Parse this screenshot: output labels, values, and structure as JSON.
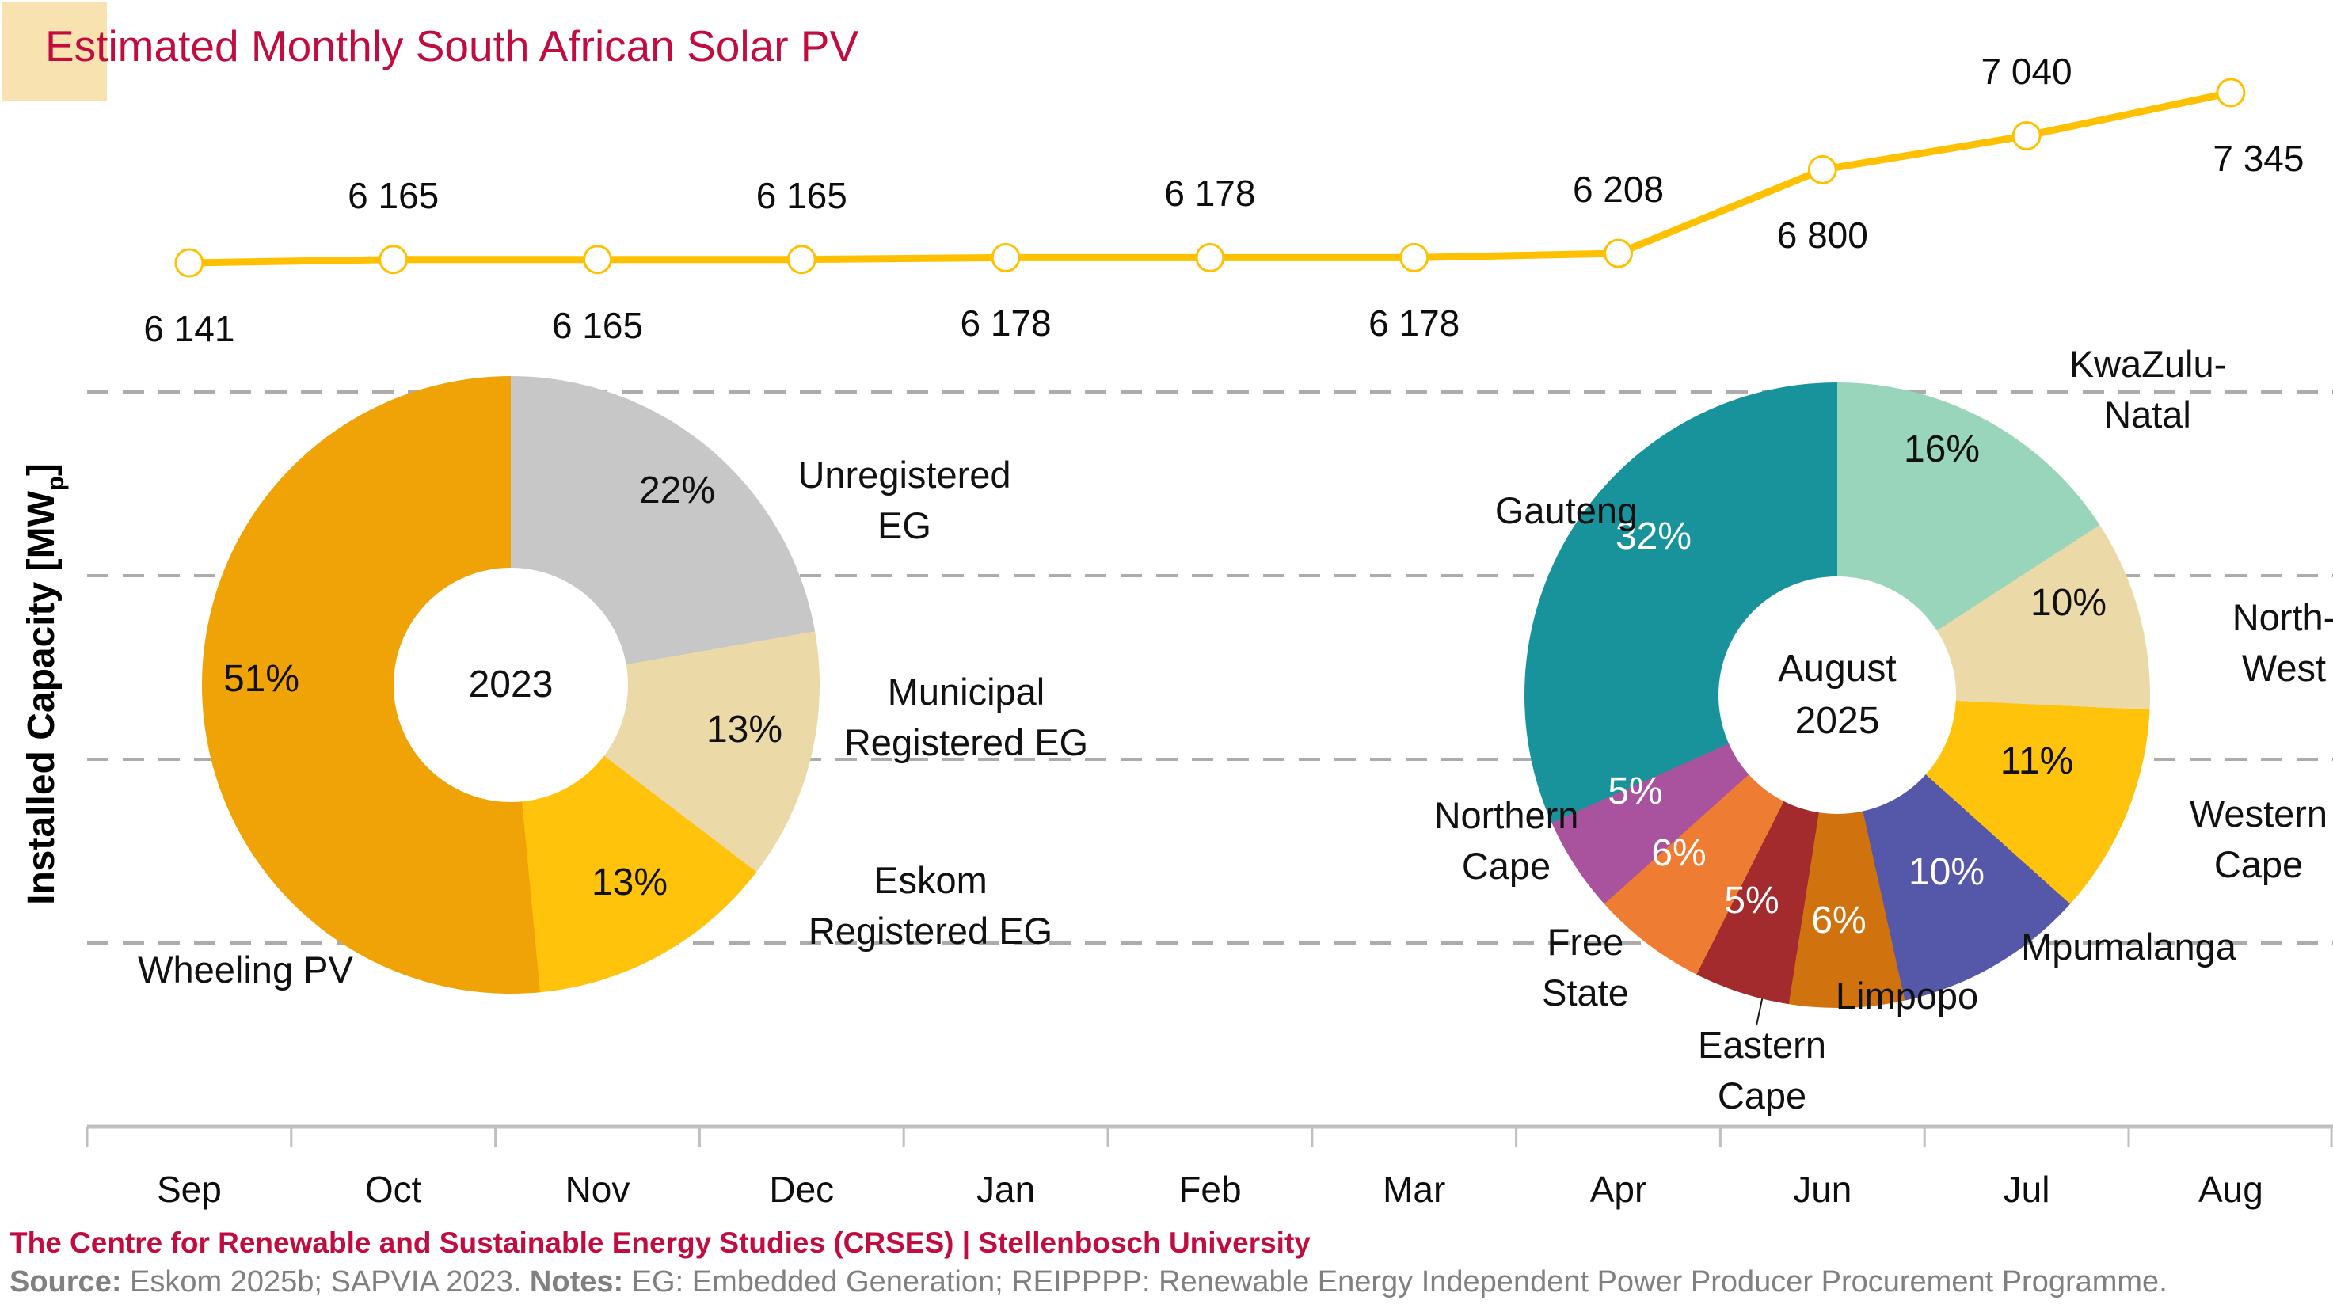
{
  "title": "Estimated Monthly South African Solar PV",
  "y_axis_label": {
    "prefix": "Installed Capacity [MW",
    "subscript": "p",
    "suffix": "]"
  },
  "x_axis": {
    "months": [
      "Sep",
      "Oct",
      "Nov",
      "Dec",
      "Jan",
      "Feb",
      "Mar",
      "Apr",
      "Jun",
      "Jul",
      "Aug"
    ]
  },
  "footer": {
    "credit": "The Centre for Renewable and Sustainable Energy Studies (CRSES) | Stellenbosch University",
    "source_label": "Source:",
    "source_text": " Eskom 2025b; SAPVIA 2023. ",
    "notes_label": "Notes:",
    "notes_text": " EG: Embedded Generation; REIPPPP: Renewable Energy Independent Power Producer Procurement Programme."
  },
  "colors": {
    "title_text": "#C00C3F",
    "title_block_bg": "#F8E3B0",
    "line_series": "#FFC000",
    "gridline": "#ACACAC",
    "axis": "#BFBFBF",
    "footer_gray": "#808080",
    "leader_line": "#1a1a1a"
  },
  "chart_data": [
    {
      "type": "line",
      "name": "monthly-installed-capacity",
      "title": "Estimated Monthly South African Solar PV",
      "xlabel": "",
      "ylabel": "Installed Capacity [MWp]",
      "x": [
        "Sep",
        "Oct",
        "Nov",
        "Dec",
        "Jan",
        "Feb",
        "Mar",
        "Apr",
        "Jun",
        "Jul",
        "Aug"
      ],
      "values": [
        6141,
        6165,
        6165,
        6165,
        6178,
        6178,
        6178,
        6208,
        6800,
        7040,
        7345
      ],
      "value_labels": [
        "6 141",
        "6 165",
        "6 165",
        "6 165",
        "6 178",
        "6 178",
        "6 178",
        "6 208",
        "6 800",
        "7 040",
        "7 345"
      ],
      "label_side": [
        "below",
        "above",
        "below",
        "above",
        "below",
        "above",
        "below",
        "above",
        "below",
        "above",
        "below"
      ],
      "series_color": "#FFC000",
      "marker": "circle-open",
      "grid": "horizontal-dashed",
      "legend": "none"
    },
    {
      "type": "pie",
      "name": "solar-pv-share-by-category",
      "center_label": "2023",
      "donut": true,
      "slices": [
        {
          "label": "Unregistered EG",
          "pct": 22,
          "pct_label": "22%",
          "color": "#C7C7C7",
          "pct_color": "#111111"
        },
        {
          "label": "Municipal Registered EG",
          "pct": 13,
          "pct_label": "13%",
          "color": "#EBD9A8",
          "pct_color": "#111111"
        },
        {
          "label": "Eskom Registered EG",
          "pct": 13,
          "pct_label": "13%",
          "color": "#FFC30B",
          "pct_color": "#111111"
        },
        {
          "label": "Wheeling PV",
          "pct": 51,
          "pct_label": "51%",
          "color": "#EFA306",
          "pct_color": "#111111"
        }
      ]
    },
    {
      "type": "pie",
      "name": "solar-pv-share-by-province",
      "center_label": "August 2025",
      "donut": true,
      "slices": [
        {
          "label": "KwaZulu-Natal",
          "pct": 16,
          "pct_label": "16%",
          "color": "#98D5BA",
          "pct_color": "#111111"
        },
        {
          "label": "North-West",
          "pct": 10,
          "pct_label": "10%",
          "color": "#EBD9A8",
          "pct_color": "#111111"
        },
        {
          "label": "Western Cape",
          "pct": 11,
          "pct_label": "11%",
          "color": "#FFC30B",
          "pct_color": "#111111"
        },
        {
          "label": "Mpumalanga",
          "pct": 10,
          "pct_label": "10%",
          "color": "#5558A9",
          "pct_color": "#FFFFFF"
        },
        {
          "label": "Limpopo",
          "pct": 6,
          "pct_label": "6%",
          "color": "#D0730F",
          "pct_color": "#FFFFFF"
        },
        {
          "label": "Eastern Cape",
          "pct": 5,
          "pct_label": "5%",
          "color": "#A32B2D",
          "pct_color": "#FFFFFF"
        },
        {
          "label": "Free State",
          "pct": 6,
          "pct_label": "6%",
          "color": "#EE7D33",
          "pct_color": "#FFFFFF"
        },
        {
          "label": "Northern Cape",
          "pct": 5,
          "pct_label": "5%",
          "color": "#A9539F",
          "pct_color": "#FFFFFF"
        },
        {
          "label": "Gauteng",
          "pct": 32,
          "pct_label": "32%",
          "color": "#18939B",
          "pct_color": "#FFFFFF"
        }
      ]
    }
  ]
}
